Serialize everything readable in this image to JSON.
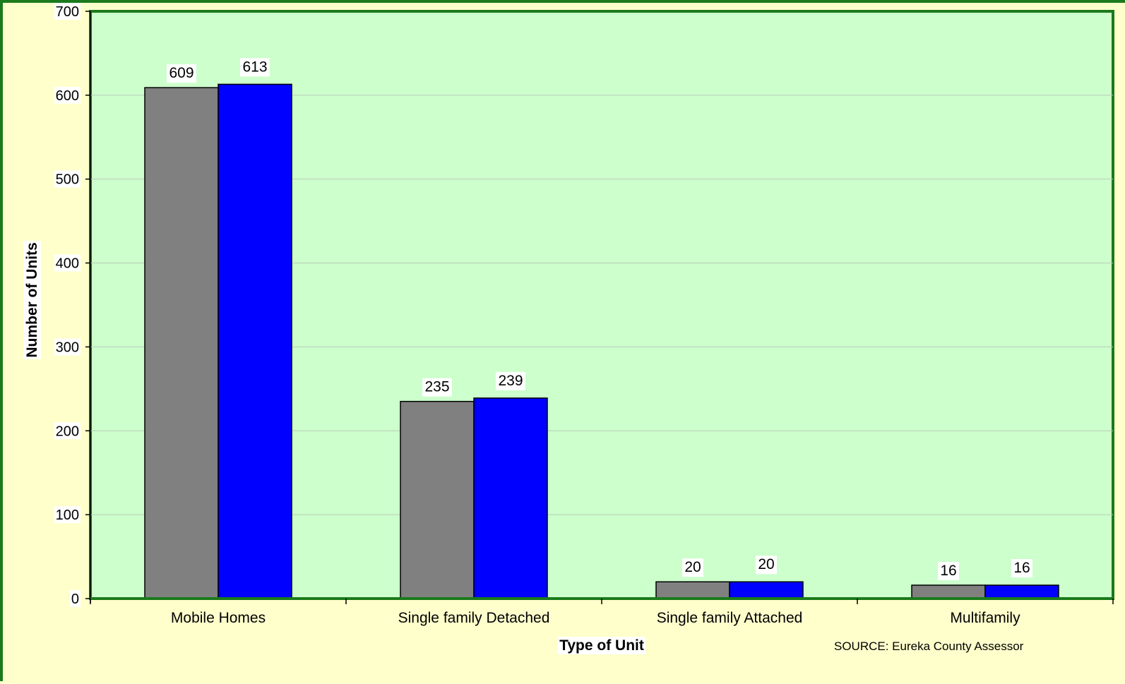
{
  "colors": {
    "page_background": "#ffffcc",
    "plot_background": "#ccffcc",
    "plot_border": "#1b7a1b",
    "gridline": "#b8ccb8",
    "label_background": "#ffffff"
  },
  "chart_data": {
    "type": "bar",
    "categories": [
      "Mobile Homes",
      "Single family Detached",
      "Single family Attached",
      "Multifamily"
    ],
    "series": [
      {
        "color": "#808080",
        "values": [
          609,
          235,
          20,
          16
        ]
      },
      {
        "color": "#0000ff",
        "values": [
          613,
          239,
          20,
          16
        ]
      }
    ],
    "data_labels": [
      [
        "609",
        "235",
        "20",
        "16"
      ],
      [
        "613",
        "239",
        "20",
        "16"
      ]
    ],
    "xlabel": "Type of Unit",
    "ylabel": "Number of Units",
    "ylim": [
      0,
      700
    ],
    "yticks": [
      0,
      100,
      200,
      300,
      400,
      500,
      600,
      700
    ],
    "grid": true,
    "legend": "none",
    "source_note": "SOURCE: Eureka County Assessor"
  }
}
